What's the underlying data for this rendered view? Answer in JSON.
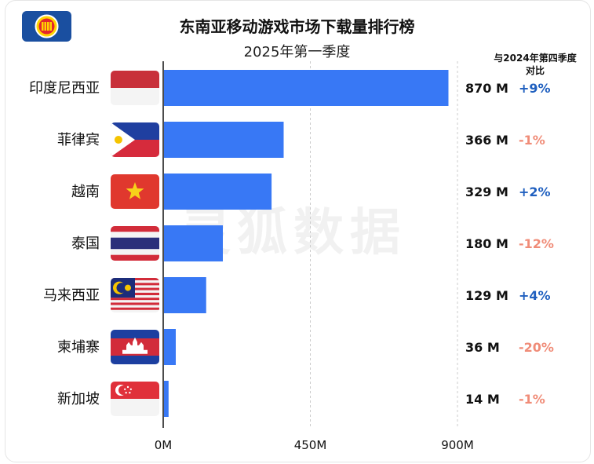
{
  "header": {
    "title": "东南亚移动游戏市场下载量排行榜",
    "subtitle": "2025年第一季度",
    "comparison_line1": "与2024年第四季度",
    "comparison_line2": "对比"
  },
  "logo": {
    "icon": "asean-emblem-icon"
  },
  "watermark": "灵狐数据",
  "colors": {
    "bar": "#3878f5",
    "positive": "#1f5fbf",
    "negative": "#f08c78",
    "grid": "#cccccc",
    "axis": "#111111"
  },
  "chart_data": {
    "type": "bar",
    "orientation": "horizontal",
    "title": "东南亚移动游戏市场下载量排行榜",
    "subtitle": "2025年第一季度",
    "categories": [
      "印度尼西亚",
      "菲律宾",
      "越南",
      "泰国",
      "马来西亚",
      "柬埔寨",
      "新加坡"
    ],
    "values": [
      870,
      366,
      329,
      180,
      129,
      36,
      14
    ],
    "value_labels": [
      "870 M",
      "366 M",
      "329 M",
      "180 M",
      "129 M",
      "36 M",
      "14 M"
    ],
    "changes": [
      "+9%",
      "-1%",
      "+2%",
      "-12%",
      "+4%",
      "-20%",
      "-1%"
    ],
    "flags": [
      "indonesia-flag-icon",
      "philippines-flag-icon",
      "vietnam-flag-icon",
      "thailand-flag-icon",
      "malaysia-flag-icon",
      "cambodia-flag-icon",
      "singapore-flag-icon"
    ],
    "xlim": [
      0,
      900
    ],
    "xticks": [
      0,
      450,
      900
    ],
    "xtick_labels": [
      "0M",
      "450M",
      "900M"
    ],
    "grid": true
  }
}
